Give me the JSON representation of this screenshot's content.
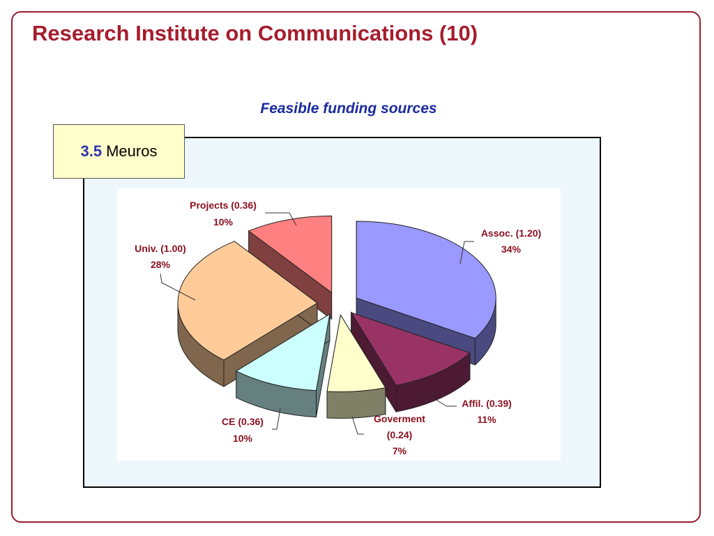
{
  "slide": {
    "title": "Research Institute on Communications (10)"
  },
  "total": {
    "value": "3.5",
    "unit": "Meuros"
  },
  "chart_data": {
    "type": "pie",
    "title": "Feasible funding sources",
    "exploded": true,
    "three_d": true,
    "slices": [
      {
        "key": "assoc",
        "name": "Assoc.",
        "value": 1.2,
        "percent": 34,
        "label": "Assoc. (1.20)",
        "percent_label": "34%",
        "color": "#9999ff",
        "side_color": "#4a4a80"
      },
      {
        "key": "affil",
        "name": "Affil.",
        "value": 0.39,
        "percent": 11,
        "label": "Affil. (0.39)",
        "percent_label": "11%",
        "color": "#993366",
        "side_color": "#4d1a33"
      },
      {
        "key": "gov",
        "name": "Goverment",
        "value": 0.24,
        "percent": 7,
        "label_line1": "Goverment",
        "label_line2": "(0.24)",
        "percent_label": "7%",
        "color": "#ffffcc",
        "side_color": "#808066"
      },
      {
        "key": "ce",
        "name": "CE",
        "value": 0.36,
        "percent": 10,
        "label": "CE (0.36)",
        "percent_label": "10%",
        "color": "#ccffff",
        "side_color": "#668080"
      },
      {
        "key": "univ",
        "name": "Univ.",
        "value": 1.0,
        "percent": 28,
        "label": "Univ. (1.00)",
        "percent_label": "28%",
        "color": "#ffcc99",
        "side_color": "#80664d"
      },
      {
        "key": "proj",
        "name": "Projects",
        "value": 0.36,
        "percent": 10,
        "label": "Projects (0.36)",
        "percent_label": "10%",
        "color": "#ff8080",
        "side_color": "#804040"
      }
    ]
  }
}
